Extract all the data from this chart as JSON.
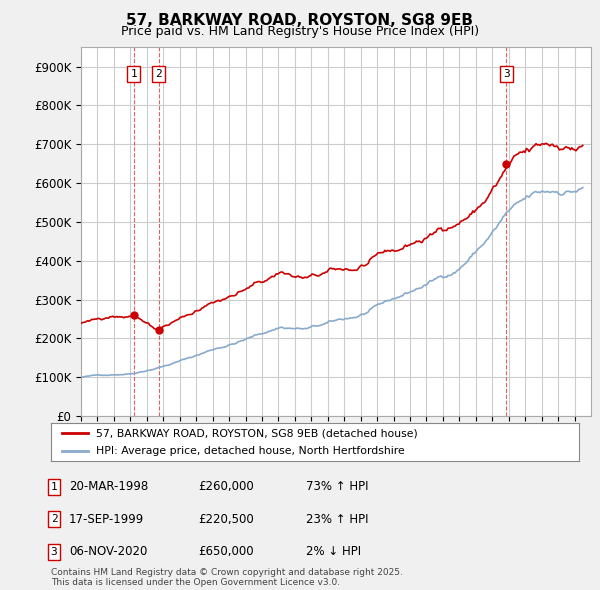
{
  "title": "57, BARKWAY ROAD, ROYSTON, SG8 9EB",
  "subtitle": "Price paid vs. HM Land Registry's House Price Index (HPI)",
  "bg_color": "#f0f0f0",
  "plot_bg_color": "#ffffff",
  "red_line_color": "#cc0000",
  "blue_line_color": "#88aacc",
  "grid_color": "#cccccc",
  "sale_dates": [
    1998.22,
    1999.72,
    2020.85
  ],
  "sale_prices": [
    260000,
    220500,
    650000
  ],
  "sale_labels": [
    "1",
    "2",
    "3"
  ],
  "legend_line1": "57, BARKWAY ROAD, ROYSTON, SG8 9EB (detached house)",
  "legend_line2": "HPI: Average price, detached house, North Hertfordshire",
  "table_rows": [
    {
      "num": "1",
      "date": "20-MAR-1998",
      "price": "£260,000",
      "change": "73% ↑ HPI"
    },
    {
      "num": "2",
      "date": "17-SEP-1999",
      "price": "£220,500",
      "change": "23% ↑ HPI"
    },
    {
      "num": "3",
      "date": "06-NOV-2020",
      "price": "£650,000",
      "change": "2% ↓ HPI"
    }
  ],
  "footer": "Contains HM Land Registry data © Crown copyright and database right 2025.\nThis data is licensed under the Open Government Licence v3.0.",
  "xmin": 1995,
  "xmax": 2026,
  "ymin": 0,
  "ymax": 950000,
  "yticks": [
    0,
    100000,
    200000,
    300000,
    400000,
    500000,
    600000,
    700000,
    800000,
    900000
  ],
  "ytick_labels": [
    "£0",
    "£100K",
    "£200K",
    "£300K",
    "£400K",
    "£500K",
    "£600K",
    "£700K",
    "£800K",
    "£900K"
  ]
}
